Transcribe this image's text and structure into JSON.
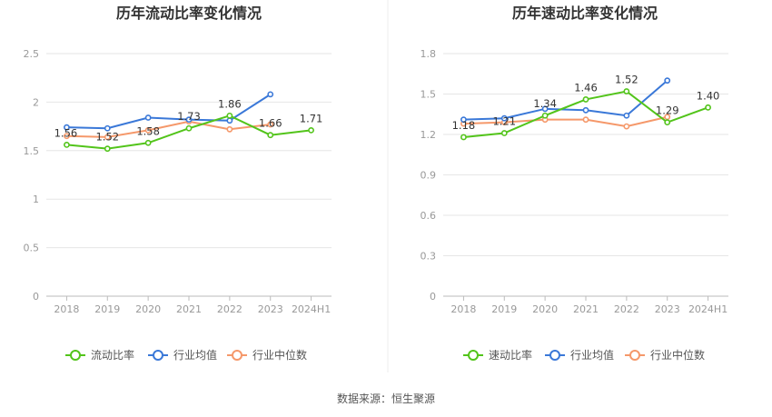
{
  "source": "数据来源：恒生聚源",
  "chart_data": [
    {
      "type": "line",
      "title": "历年流动比率变化情况",
      "categories": [
        "2018",
        "2019",
        "2020",
        "2021",
        "2022",
        "2023",
        "2024H1"
      ],
      "ylim": [
        0,
        2.5
      ],
      "yticks": [
        "0",
        "0.5",
        "1",
        "1.5",
        "2",
        "2.5"
      ],
      "grid": true,
      "legend_position": "bottom",
      "series": [
        {
          "name": "流动比率",
          "color": "#52c41a",
          "values": [
            1.56,
            1.52,
            1.58,
            1.73,
            1.86,
            1.66,
            1.71
          ],
          "labels": [
            "1.56",
            "1.52",
            "1.58",
            "1.73",
            "1.86",
            "1.66",
            "1.71"
          ]
        },
        {
          "name": "行业均值",
          "color": "#3a78d8",
          "values": [
            1.74,
            1.73,
            1.84,
            1.82,
            1.81,
            2.08,
            null
          ],
          "labels": []
        },
        {
          "name": "行业中位数",
          "color": "#f5986a",
          "values": [
            1.65,
            1.64,
            1.71,
            1.8,
            1.72,
            1.77,
            null
          ],
          "labels": []
        }
      ]
    },
    {
      "type": "line",
      "title": "历年速动比率变化情况",
      "categories": [
        "2018",
        "2019",
        "2020",
        "2021",
        "2022",
        "2023",
        "2024H1"
      ],
      "ylim": [
        0,
        1.8
      ],
      "yticks": [
        "0",
        "0.3",
        "0.6",
        "0.9",
        "1.2",
        "1.5",
        "1.8"
      ],
      "grid": true,
      "legend_position": "bottom",
      "series": [
        {
          "name": "速动比率",
          "color": "#52c41a",
          "values": [
            1.18,
            1.21,
            1.34,
            1.46,
            1.52,
            1.29,
            1.4
          ],
          "labels": [
            "1.18",
            "1.21",
            "1.34",
            "1.46",
            "1.52",
            "1.29",
            "1.40"
          ]
        },
        {
          "name": "行业均值",
          "color": "#3a78d8",
          "values": [
            1.31,
            1.32,
            1.39,
            1.38,
            1.34,
            1.6,
            null
          ],
          "labels": []
        },
        {
          "name": "行业中位数",
          "color": "#f5986a",
          "values": [
            1.28,
            1.29,
            1.31,
            1.31,
            1.26,
            1.33,
            null
          ],
          "labels": []
        }
      ]
    }
  ]
}
